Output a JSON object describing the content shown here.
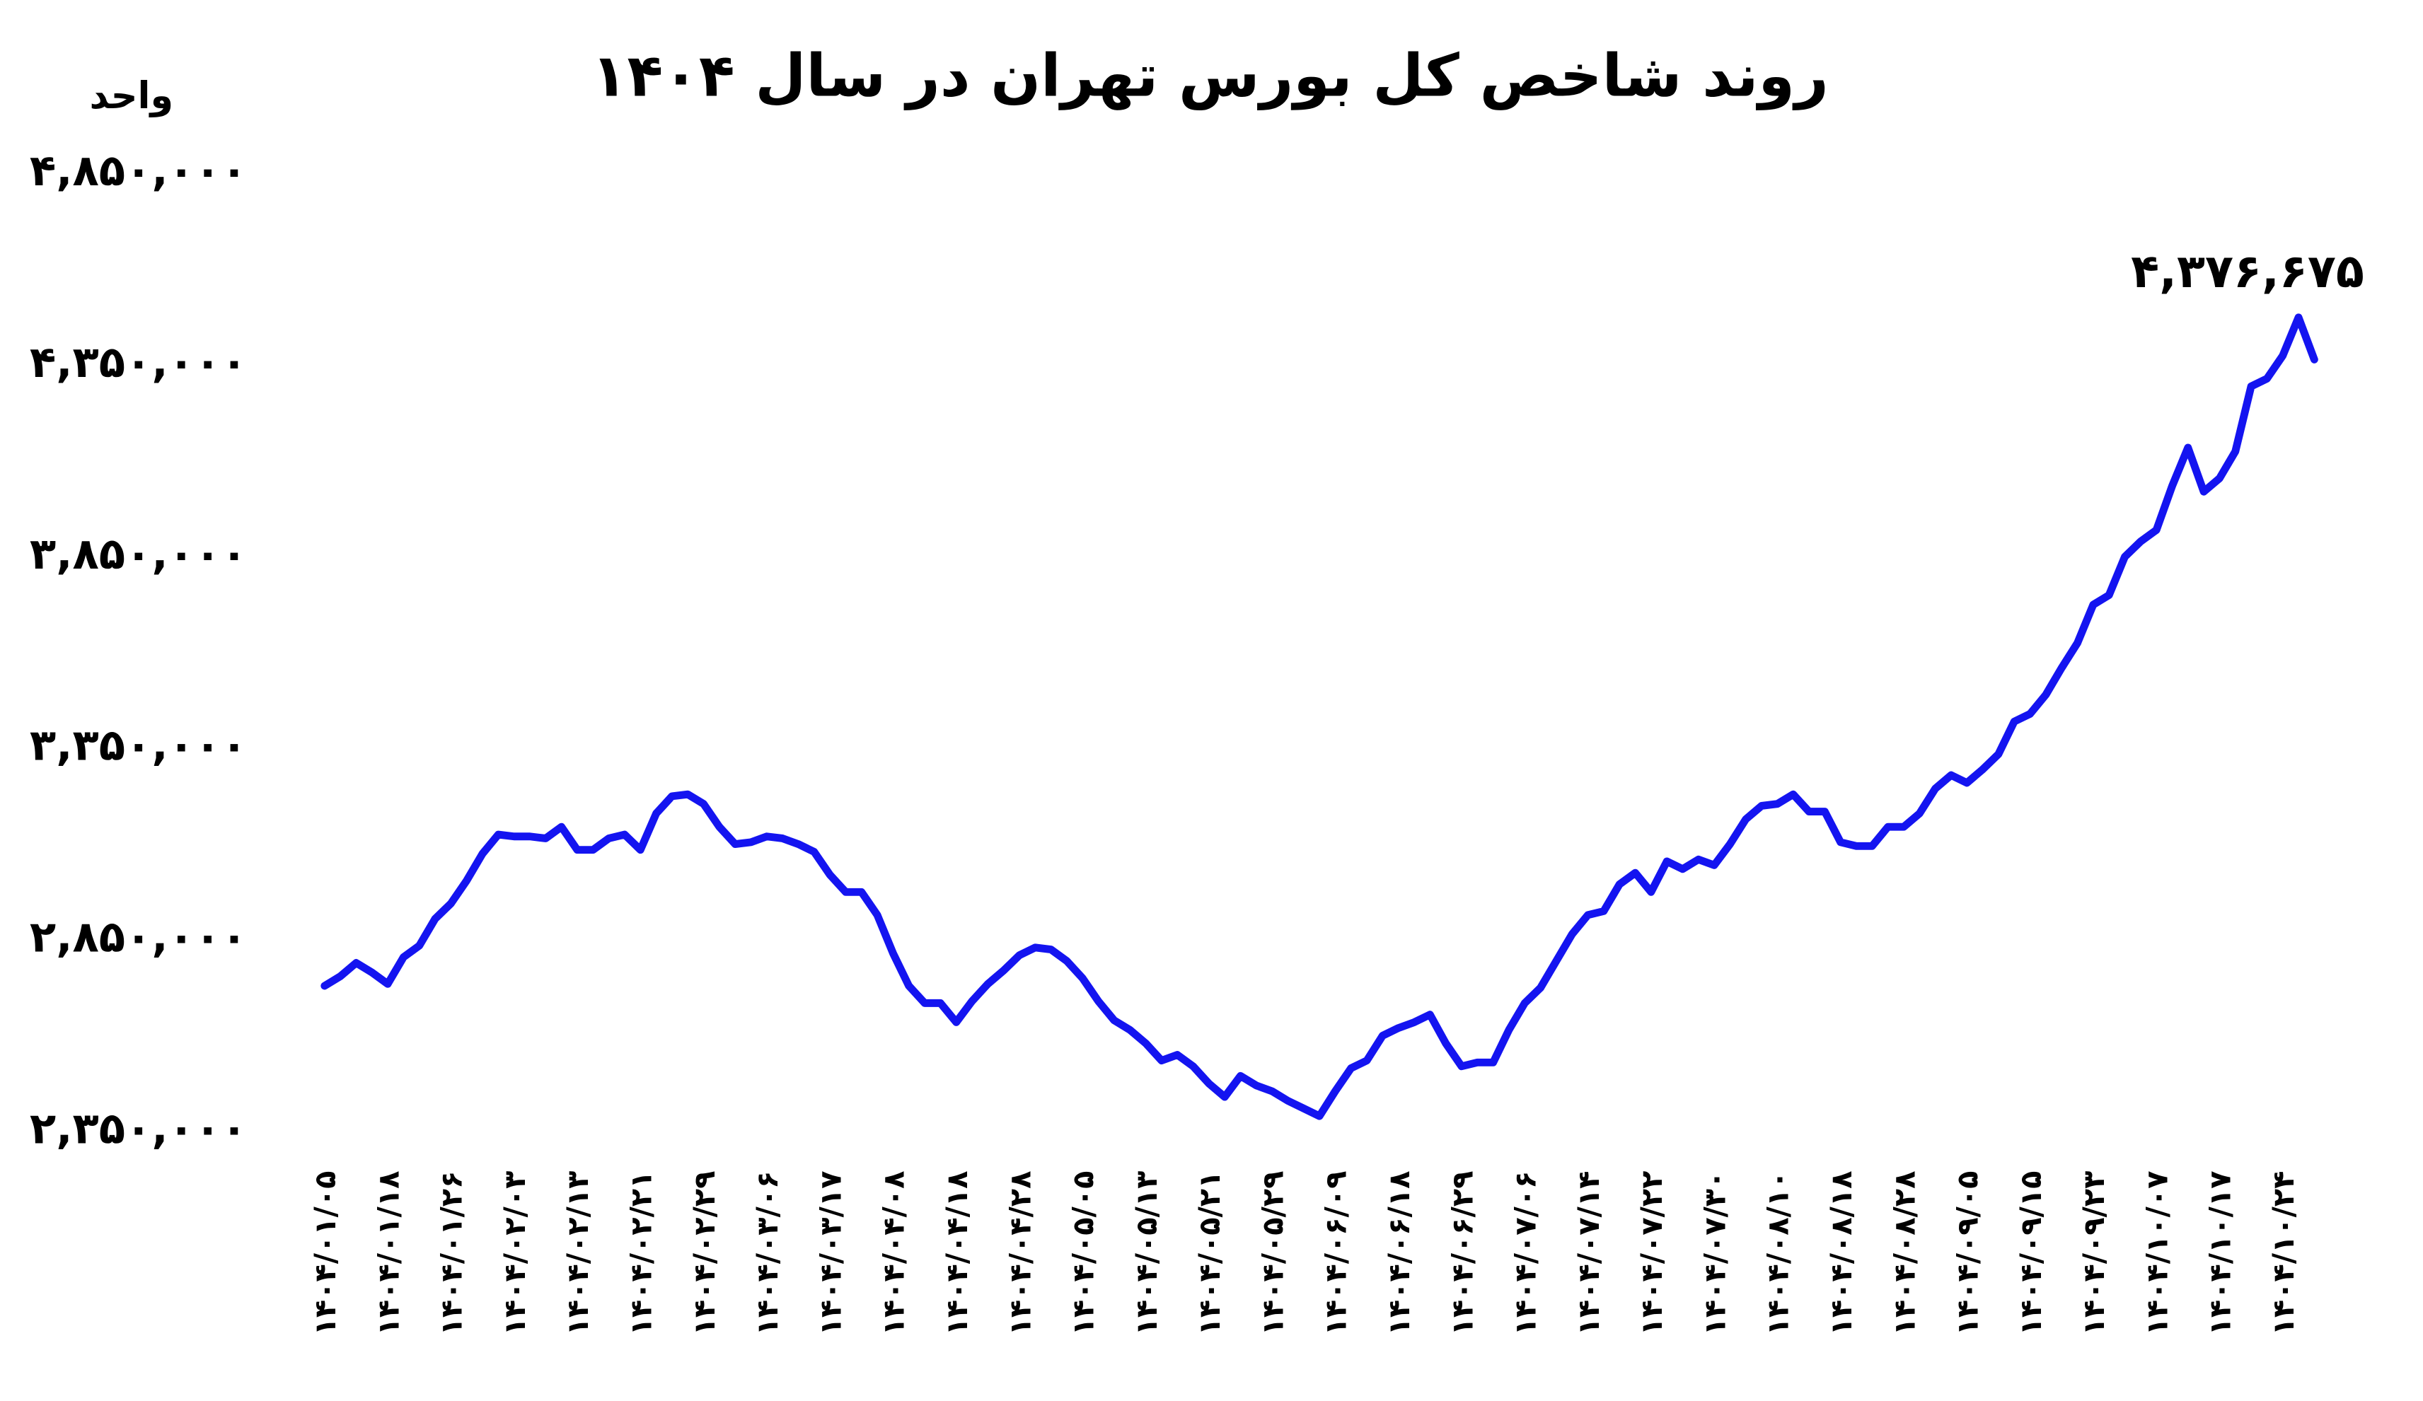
{
  "chart_data": {
    "type": "line",
    "title": "روند شاخص کل بورس تهران در سال ۱۴۰۴",
    "y_label": "واحد",
    "annotation": "۴,۳۷۶,۶۷۵",
    "color": "#1414f0",
    "grid": false,
    "ylim": [
      2350000,
      4850000
    ],
    "yticks": [
      {
        "value": 2350000,
        "label": "۲,۳۵۰,۰۰۰"
      },
      {
        "value": 2850000,
        "label": "۲,۸۵۰,۰۰۰"
      },
      {
        "value": 3350000,
        "label": "۳,۳۵۰,۰۰۰"
      },
      {
        "value": 3850000,
        "label": "۳,۸۵۰,۰۰۰"
      },
      {
        "value": 4350000,
        "label": "۴,۳۵۰,۰۰۰"
      },
      {
        "value": 4850000,
        "label": "۴,۸۵۰,۰۰۰"
      }
    ],
    "categories": [
      "۱۴۰۴/۰۱/۰۵",
      null,
      null,
      null,
      "۱۴۰۴/۰۱/۱۸",
      null,
      null,
      null,
      "۱۴۰۴/۰۱/۲۶",
      null,
      null,
      null,
      "۱۴۰۴/۰۲/۰۳",
      null,
      null,
      null,
      "۱۴۰۴/۰۲/۱۳",
      null,
      null,
      null,
      "۱۴۰۴/۰۲/۲۱",
      null,
      null,
      null,
      "۱۴۰۴/۰۲/۲۹",
      null,
      null,
      null,
      "۱۴۰۴/۰۳/۰۶",
      null,
      null,
      null,
      "۱۴۰۴/۰۳/۱۷",
      null,
      null,
      null,
      "۱۴۰۴/۰۴/۰۸",
      null,
      null,
      null,
      "۱۴۰۴/۰۴/۱۸",
      null,
      null,
      null,
      "۱۴۰۴/۰۴/۲۸",
      null,
      null,
      null,
      "۱۴۰۴/۰۵/۰۵",
      null,
      null,
      null,
      "۱۴۰۴/۰۵/۱۳",
      null,
      null,
      null,
      "۱۴۰۴/۰۵/۲۱",
      null,
      null,
      null,
      "۱۴۰۴/۰۵/۲۹",
      null,
      null,
      null,
      "۱۴۰۴/۰۶/۰۹",
      null,
      null,
      null,
      "۱۴۰۴/۰۶/۱۸",
      null,
      null,
      null,
      "۱۴۰۴/۰۶/۲۹",
      null,
      null,
      null,
      "۱۴۰۴/۰۷/۰۶",
      null,
      null,
      null,
      "۱۴۰۴/۰۷/۱۴",
      null,
      null,
      null,
      "۱۴۰۴/۰۷/۲۲",
      null,
      null,
      null,
      "۱۴۰۴/۰۷/۳۰",
      null,
      null,
      null,
      "۱۴۰۴/۰۸/۱۰",
      null,
      null,
      null,
      "۱۴۰۴/۰۸/۱۸",
      null,
      null,
      null,
      "۱۴۰۴/۰۸/۲۸",
      null,
      null,
      null,
      "۱۴۰۴/۰۹/۰۵",
      null,
      null,
      null,
      "۱۴۰۴/۰۹/۱۵",
      null,
      null,
      null,
      "۱۴۰۴/۰۹/۲۳",
      null,
      null,
      null,
      "۱۴۰۴/۱۰/۰۷",
      null,
      null,
      null,
      "۱۴۰۴/۱۰/۱۷",
      null,
      null,
      null,
      "۱۴۰۴/۱۰/۲۴",
      null,
      null
    ],
    "values": [
      2720000,
      2745000,
      2780000,
      2755000,
      2725000,
      2795000,
      2825000,
      2895000,
      2935000,
      2995000,
      3065000,
      3115000,
      3110000,
      3110000,
      3105000,
      3135000,
      3075000,
      3075000,
      3105000,
      3115000,
      3075000,
      3170000,
      3215000,
      3220000,
      3195000,
      3135000,
      3090000,
      3095000,
      3110000,
      3105000,
      3090000,
      3070000,
      3010000,
      2965000,
      2965000,
      2905000,
      2805000,
      2720000,
      2675000,
      2675000,
      2625000,
      2680000,
      2725000,
      2760000,
      2800000,
      2820000,
      2815000,
      2785000,
      2740000,
      2680000,
      2630000,
      2605000,
      2570000,
      2525000,
      2540000,
      2510000,
      2465000,
      2430000,
      2485000,
      2460000,
      2445000,
      2420000,
      2400000,
      2380000,
      2445000,
      2505000,
      2525000,
      2590000,
      2610000,
      2625000,
      2645000,
      2570000,
      2510000,
      2520000,
      2520000,
      2605000,
      2675000,
      2715000,
      2785000,
      2855000,
      2905000,
      2915000,
      2985000,
      3015000,
      2965000,
      3045000,
      3025000,
      3050000,
      3035000,
      3090000,
      3155000,
      3190000,
      3195000,
      3220000,
      3175000,
      3175000,
      3095000,
      3085000,
      3085000,
      3135000,
      3135000,
      3170000,
      3235000,
      3270000,
      3250000,
      3285000,
      3325000,
      3410000,
      3430000,
      3480000,
      3550000,
      3615000,
      3715000,
      3740000,
      3840000,
      3880000,
      3910000,
      4025000,
      4125000,
      4010000,
      4045000,
      4115000,
      4285000,
      4305000,
      4365000,
      4465000,
      4355000
    ]
  }
}
